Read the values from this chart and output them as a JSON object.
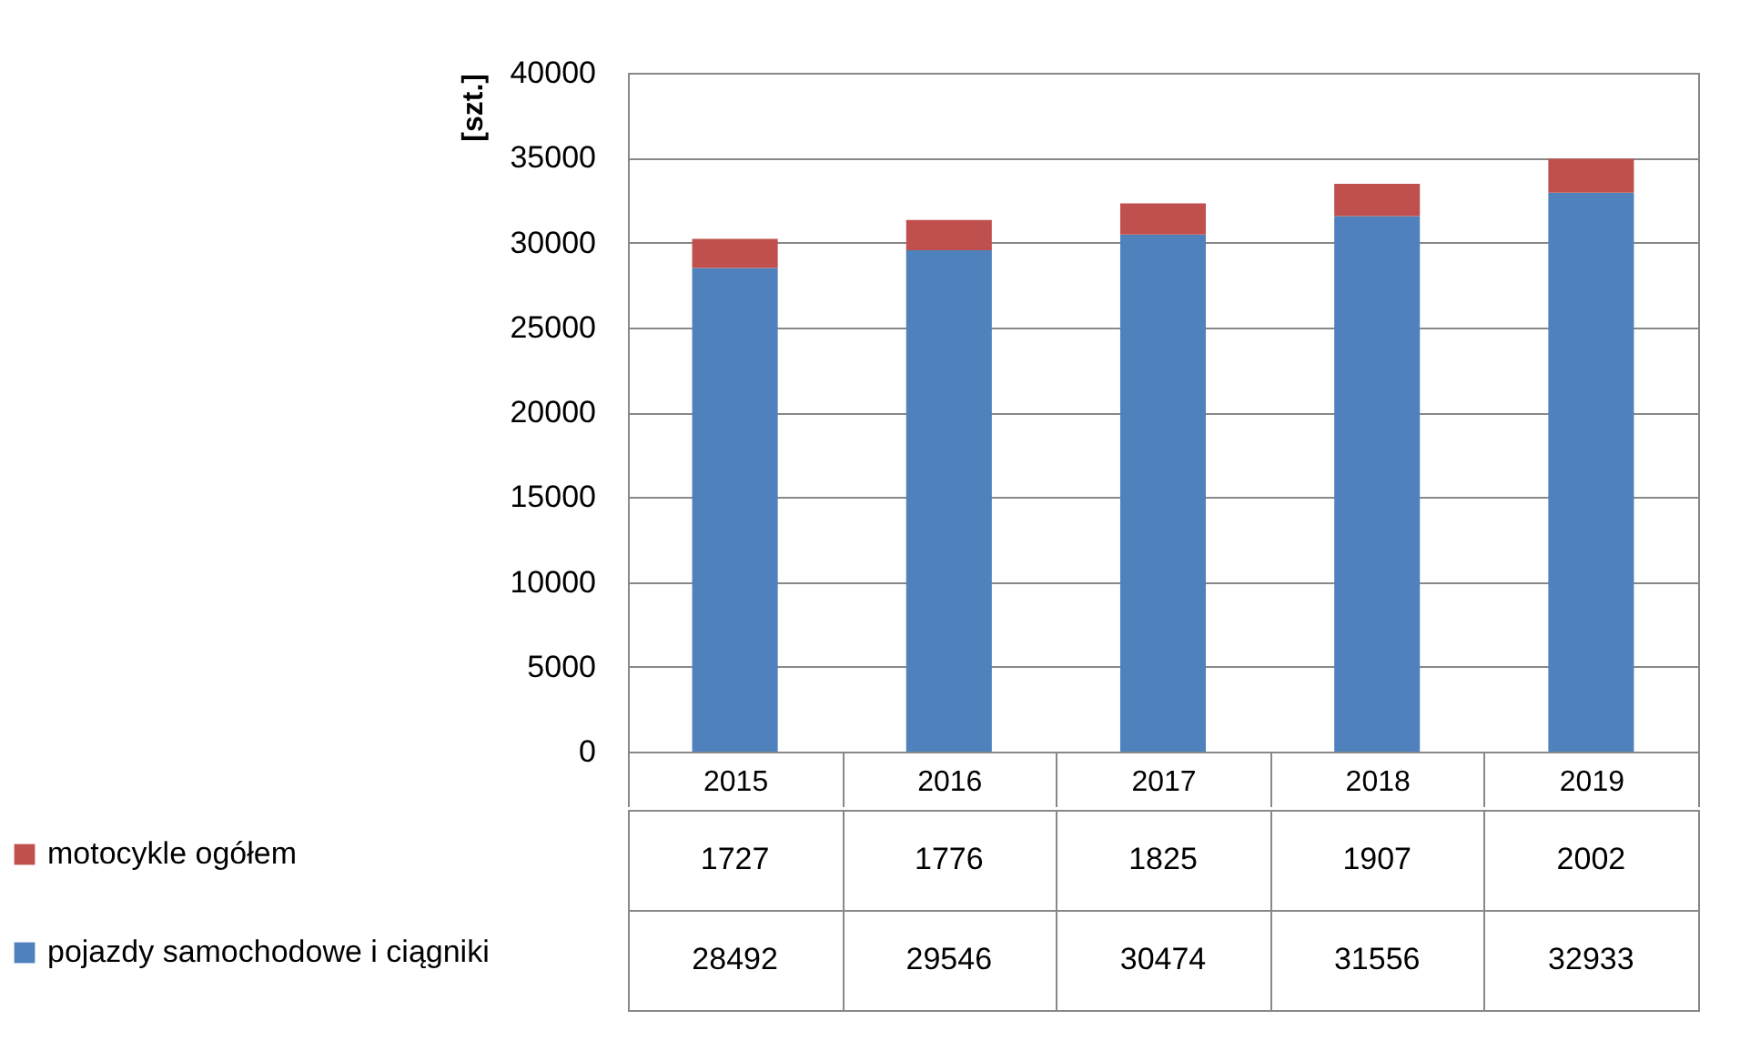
{
  "chart_data": {
    "type": "bar",
    "stacked": true,
    "ylabel": "[szt.]",
    "categories": [
      "2015",
      "2016",
      "2017",
      "2018",
      "2019"
    ],
    "series": [
      {
        "name": "pojazdy samochodowe i ciągniki",
        "color": "#4f81bd",
        "values": [
          28492,
          29546,
          30474,
          31556,
          32933
        ]
      },
      {
        "name": "motocykle ogółem",
        "color": "#c0504d",
        "values": [
          1727,
          1776,
          1825,
          1907,
          2002
        ]
      }
    ],
    "ylim": [
      0,
      40000
    ],
    "yticks": [
      0,
      5000,
      10000,
      15000,
      20000,
      25000,
      30000,
      35000,
      40000
    ],
    "grid": "y",
    "legend": "bottom left",
    "data_labels": true
  }
}
